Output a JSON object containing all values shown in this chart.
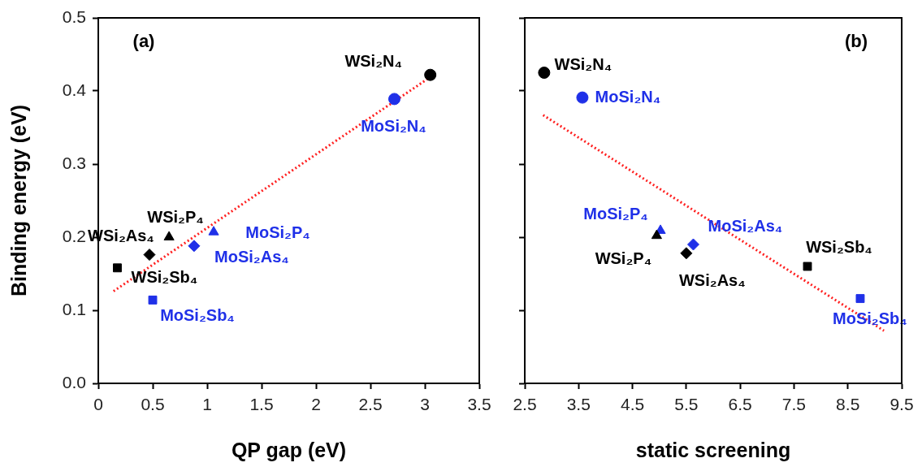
{
  "chart_data": [
    {
      "type": "scatter",
      "title": "(a)",
      "xlabel": "QP gap (eV)",
      "ylabel": "Binding energy (eV)",
      "xlim": [
        0,
        3.5
      ],
      "xticks": [
        0,
        0.5,
        1,
        1.5,
        2,
        2.5,
        3,
        3.5
      ],
      "ylim": [
        0,
        0.5
      ],
      "yticks": [
        {
          "value": 0,
          "label": "0.0"
        },
        0.1,
        0.2,
        0.3,
        0.4,
        0.5
      ],
      "grid": false,
      "legend": false,
      "series": [
        {
          "name": "WSi₂N₄",
          "color": "#000000",
          "marker": "circle",
          "x": [
            3.05
          ],
          "values": [
            0.422
          ]
        },
        {
          "name": "MoSi₂N₄",
          "color": "#1f30e8",
          "marker": "circle",
          "x": [
            2.72
          ],
          "values": [
            0.389
          ]
        },
        {
          "name": "WSi₂P₄",
          "color": "#000000",
          "marker": "triangle",
          "x": [
            0.65
          ],
          "values": [
            0.2
          ]
        },
        {
          "name": "MoSi₂P₄",
          "color": "#1f30e8",
          "marker": "triangle",
          "x": [
            1.06
          ],
          "values": [
            0.207
          ]
        },
        {
          "name": "WSi₂As₄",
          "color": "#000000",
          "marker": "diamond",
          "x": [
            0.47
          ],
          "values": [
            0.176
          ]
        },
        {
          "name": "MoSi₂As₄",
          "color": "#1f30e8",
          "marker": "diamond",
          "x": [
            0.88
          ],
          "values": [
            0.188
          ]
        },
        {
          "name": "WSi₂Sb₄",
          "color": "#000000",
          "marker": "square",
          "x": [
            0.175
          ],
          "values": [
            0.158
          ]
        },
        {
          "name": "MoSi₂Sb₄",
          "color": "#1f30e8",
          "marker": "square",
          "x": [
            0.5
          ],
          "values": [
            0.114
          ]
        },
        {
          "type": "line",
          "color": "#ff2020",
          "marker": "none",
          "line_style": "dotted",
          "x": [
            0.14,
            3.03
          ],
          "values": [
            0.126,
            0.417
          ]
        }
      ]
    },
    {
      "type": "scatter",
      "title": "(b)",
      "xlabel": "static screening",
      "xlim": [
        2.5,
        9.5
      ],
      "xticks": [
        2.5,
        3.5,
        4.5,
        5.5,
        6.5,
        7.5,
        8.5,
        9.5
      ],
      "ylim": [
        0,
        0.5
      ],
      "yticks": [
        0,
        0.1,
        0.2,
        0.3,
        0.4,
        0.5
      ],
      "grid": false,
      "legend": false,
      "tick_labels": "x",
      "series": [
        {
          "name": "WSi₂N₄",
          "color": "#000000",
          "marker": "circle",
          "x": [
            2.86
          ],
          "values": [
            0.425
          ]
        },
        {
          "name": "MoSi₂N₄",
          "color": "#1f30e8",
          "marker": "circle",
          "x": [
            3.57
          ],
          "values": [
            0.391
          ]
        },
        {
          "name": "WSi₂P₄",
          "color": "#000000",
          "marker": "triangle",
          "x": [
            4.95
          ],
          "values": [
            0.202
          ]
        },
        {
          "name": "MoSi₂P₄",
          "color": "#1f30e8",
          "marker": "triangle",
          "x": [
            5.02
          ],
          "values": [
            0.209
          ]
        },
        {
          "name": "WSi₂As₄",
          "color": "#000000",
          "marker": "diamond",
          "x": [
            5.5
          ],
          "values": [
            0.178
          ]
        },
        {
          "name": "MoSi₂As₄",
          "color": "#1f30e8",
          "marker": "diamond",
          "x": [
            5.63
          ],
          "values": [
            0.19
          ]
        },
        {
          "name": "WSi₂Sb₄",
          "color": "#000000",
          "marker": "square",
          "x": [
            7.75
          ],
          "values": [
            0.16
          ]
        },
        {
          "name": "MoSi₂Sb₄",
          "color": "#1f30e8",
          "marker": "square",
          "x": [
            8.73
          ],
          "values": [
            0.116
          ]
        },
        {
          "type": "line",
          "color": "#ff2020",
          "marker": "none",
          "line_style": "dotted",
          "x": [
            2.84,
            9.17
          ],
          "values": [
            0.367,
            0.072
          ]
        }
      ]
    }
  ]
}
